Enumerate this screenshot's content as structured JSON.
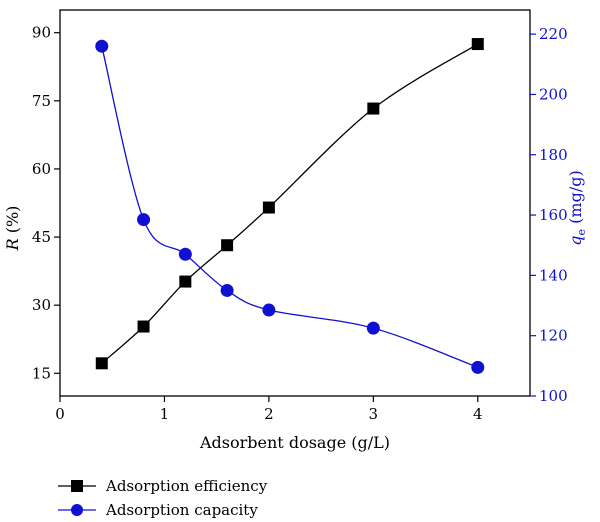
{
  "chart_data": {
    "type": "line",
    "x_axis": {
      "label": "Adsorbent dosage (g/L)",
      "range": [
        0,
        4.5
      ],
      "ticks": [
        0,
        1,
        2,
        3,
        4
      ]
    },
    "y_left": {
      "label_var": "R",
      "label_unit": "(%)",
      "range": [
        10,
        95
      ],
      "ticks": [
        15,
        30,
        45,
        60,
        75,
        90
      ],
      "color": "#000000"
    },
    "y_right": {
      "label_var": "q",
      "label_sub": "e",
      "label_unit": "(mg/g)",
      "range": [
        100,
        228
      ],
      "ticks": [
        100,
        120,
        140,
        160,
        180,
        200,
        220
      ],
      "color": "#1010d0"
    },
    "series": [
      {
        "name": "Adsorption efficiency",
        "axis": "left",
        "marker": "square",
        "color": "#000000",
        "x": [
          0.4,
          0.8,
          1.2,
          1.6,
          2.0,
          3.0,
          4.0
        ],
        "y": [
          17.2,
          25.3,
          35.2,
          43.2,
          51.5,
          73.3,
          87.5
        ]
      },
      {
        "name": "Adsorption capacity",
        "axis": "right",
        "marker": "circle",
        "color": "#1010d0",
        "x": [
          0.4,
          0.8,
          1.2,
          1.6,
          2.0,
          3.0,
          4.0
        ],
        "y": [
          216,
          158.5,
          147,
          135,
          128.5,
          122.5,
          109.5
        ]
      }
    ],
    "legend_position": "bottom-left"
  }
}
